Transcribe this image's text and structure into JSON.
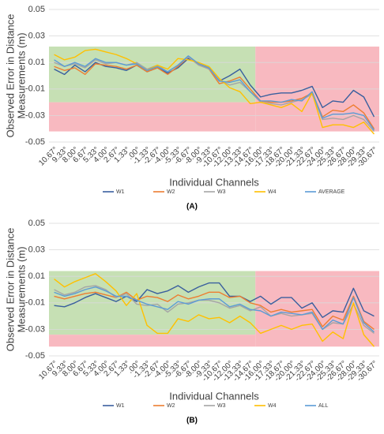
{
  "chart_data": [
    {
      "type": "line",
      "label": "(A)",
      "x_label": "Individual Channels",
      "y_label": [
        "Observed Error in Distance",
        "Measurements (m)"
      ],
      "categories": [
        "10.67°",
        "9.33°",
        "8.00°",
        "6.67°",
        "5.33°",
        "4.00°",
        "2.67°",
        "1.33°",
        ".00°",
        "-1.33°",
        "-2.67°",
        "-4.00°",
        "-5.33°",
        "-6.67°",
        "-8.00°",
        "-9.33°",
        "-10.67°",
        "-12.00°",
        "-13.33°",
        "-14.67°",
        "-16.00°",
        "-17.33°",
        "-18.67°",
        "-20.00°",
        "-21.33°",
        "-22.67°",
        "-24.00°",
        "-25.33°",
        "-26.67°",
        "-28.00°",
        "-29.33°",
        "-30.67°"
      ],
      "ylim": [
        -0.05,
        0.05
      ],
      "yticks": [
        -0.05,
        -0.03,
        -0.01,
        0.01,
        0.03,
        0.05
      ],
      "grid": true,
      "bands": [
        {
          "color": "#c6e0b4",
          "from": "10.67°",
          "to": "-14.67°",
          "ylim": [
            -0.02,
            0.022
          ]
        },
        {
          "color": "#f8b9c0",
          "from": "-16.00°",
          "to": "-30.67°",
          "ylim": [
            -0.042,
            0.022
          ]
        },
        {
          "color": "#f8b9c0",
          "from": "10.67°",
          "to": "-14.67°",
          "ylim": [
            -0.042,
            -0.02
          ]
        }
      ],
      "series": [
        {
          "name": "W1",
          "color": "#3a5f9e",
          "values": [
            0.005,
            0.001,
            0.008,
            0.003,
            0.01,
            0.007,
            0.006,
            0.004,
            0.008,
            0.003,
            0.006,
            0.002,
            0.006,
            0.013,
            0.009,
            0.006,
            -0.004,
            0.0,
            0.005,
            -0.007,
            -0.016,
            -0.014,
            -0.013,
            -0.013,
            -0.011,
            -0.008,
            -0.024,
            -0.019,
            -0.02,
            -0.011,
            -0.016,
            -0.031
          ]
        },
        {
          "name": "W2",
          "color": "#ed7d31",
          "values": [
            0.007,
            0.004,
            0.006,
            0.001,
            0.009,
            0.008,
            0.007,
            0.005,
            0.008,
            0.003,
            0.006,
            0.001,
            0.007,
            0.014,
            0.009,
            0.005,
            -0.006,
            -0.004,
            -0.001,
            -0.01,
            -0.019,
            -0.02,
            -0.02,
            -0.019,
            -0.017,
            -0.013,
            -0.031,
            -0.026,
            -0.027,
            -0.022,
            -0.028,
            -0.04
          ]
        },
        {
          "name": "W3",
          "color": "#a5a5a5",
          "values": [
            0.01,
            0.007,
            0.009,
            0.006,
            0.012,
            0.009,
            0.01,
            0.008,
            0.01,
            0.005,
            0.008,
            0.003,
            0.008,
            0.014,
            0.008,
            0.005,
            -0.003,
            -0.007,
            -0.005,
            -0.012,
            -0.02,
            -0.021,
            -0.022,
            -0.02,
            -0.018,
            -0.014,
            -0.033,
            -0.032,
            -0.033,
            -0.03,
            -0.033,
            -0.042
          ]
        },
        {
          "name": "W4",
          "color": "#ffc000",
          "values": [
            0.016,
            0.012,
            0.014,
            0.019,
            0.02,
            0.018,
            0.016,
            0.013,
            0.009,
            0.004,
            0.008,
            0.005,
            0.013,
            0.012,
            0.01,
            0.007,
            -0.002,
            -0.009,
            -0.012,
            -0.021,
            -0.02,
            -0.022,
            -0.024,
            -0.021,
            -0.027,
            -0.013,
            -0.039,
            -0.037,
            -0.037,
            -0.039,
            -0.035,
            -0.044
          ]
        },
        {
          "name": "AVERAGE",
          "color": "#5b9bd5",
          "values": [
            0.012,
            0.007,
            0.01,
            0.007,
            0.013,
            0.01,
            0.01,
            0.008,
            0.009,
            0.004,
            0.007,
            0.003,
            0.008,
            0.015,
            0.009,
            0.006,
            -0.004,
            -0.005,
            -0.003,
            -0.012,
            -0.019,
            -0.019,
            -0.02,
            -0.018,
            -0.019,
            -0.012,
            -0.032,
            -0.029,
            -0.029,
            -0.028,
            -0.03,
            -0.041
          ]
        }
      ]
    },
    {
      "type": "line",
      "label": "(B)",
      "x_label": "Individual Channels",
      "y_label": [
        "Observed Error in Distance",
        "Measurements (m)"
      ],
      "categories": [
        "10.67°",
        "9.33°",
        "8.00°",
        "6.67°",
        "5.33°",
        "4.00°",
        "2.67°",
        "1.33°",
        ".00°",
        "-1.33°",
        "-2.67°",
        "-4.00°",
        "-5.33°",
        "-6.67°",
        "-8.00°",
        "-9.33°",
        "-10.67°",
        "-12.00°",
        "-13.33°",
        "-14.67°",
        "-16.00°",
        "-17.33°",
        "-18.67°",
        "-20.00°",
        "-21.33°",
        "-22.67°",
        "-24.00°",
        "-25.33°",
        "-26.67°",
        "-28.00°",
        "-29.33°",
        "-30.67°"
      ],
      "ylim": [
        -0.05,
        0.05
      ],
      "yticks": [
        -0.05,
        -0.03,
        -0.01,
        0.01,
        0.03,
        0.05
      ],
      "grid": true,
      "bands": [
        {
          "color": "#c6e0b4",
          "from": "10.67°",
          "to": "-14.67°",
          "ylim": [
            -0.034,
            0.014
          ]
        },
        {
          "color": "#f8b9c0",
          "from": "-16.00°",
          "to": "-30.67°",
          "ylim": [
            -0.043,
            0.014
          ]
        },
        {
          "color": "#f8b9c0",
          "from": "10.67°",
          "to": "-14.67°",
          "ylim": [
            -0.043,
            -0.034
          ]
        }
      ],
      "series": [
        {
          "name": "W1",
          "color": "#3a5f9e",
          "values": [
            -0.012,
            -0.013,
            -0.01,
            -0.006,
            -0.003,
            -0.006,
            -0.009,
            -0.005,
            -0.009,
            0.0,
            -0.003,
            -0.001,
            0.003,
            -0.002,
            0.002,
            0.005,
            0.005,
            -0.005,
            -0.005,
            -0.009,
            -0.005,
            -0.011,
            -0.006,
            -0.006,
            -0.014,
            -0.01,
            -0.021,
            -0.016,
            -0.017,
            0.001,
            -0.016,
            -0.02
          ]
        },
        {
          "name": "W2",
          "color": "#ed7d31",
          "values": [
            -0.005,
            -0.007,
            -0.005,
            -0.003,
            -0.002,
            -0.004,
            -0.006,
            -0.002,
            -0.008,
            -0.005,
            -0.006,
            -0.009,
            -0.004,
            -0.007,
            -0.005,
            -0.002,
            -0.002,
            -0.006,
            -0.005,
            -0.01,
            -0.012,
            -0.017,
            -0.015,
            -0.017,
            -0.016,
            -0.015,
            -0.028,
            -0.02,
            -0.023,
            -0.005,
            -0.024,
            -0.03
          ]
        },
        {
          "name": "W3",
          "color": "#a5a5a5",
          "values": [
            0.0,
            -0.004,
            -0.002,
            0.002,
            0.003,
            0.0,
            -0.006,
            -0.003,
            -0.011,
            -0.012,
            -0.011,
            -0.017,
            -0.011,
            -0.01,
            -0.008,
            -0.008,
            -0.01,
            -0.014,
            -0.012,
            -0.016,
            -0.013,
            -0.02,
            -0.018,
            -0.02,
            -0.019,
            -0.018,
            -0.03,
            -0.025,
            -0.026,
            -0.011,
            -0.027,
            -0.033
          ]
        },
        {
          "name": "W4",
          "color": "#ffc000",
          "values": [
            0.008,
            0.002,
            0.006,
            0.009,
            0.012,
            0.006,
            -0.001,
            -0.012,
            -0.003,
            -0.027,
            -0.033,
            -0.033,
            -0.022,
            -0.024,
            -0.019,
            -0.022,
            -0.021,
            -0.025,
            -0.02,
            -0.025,
            -0.033,
            -0.03,
            -0.027,
            -0.03,
            -0.027,
            -0.026,
            -0.039,
            -0.032,
            -0.037,
            -0.01,
            -0.034,
            -0.043
          ]
        },
        {
          "name": "ALL",
          "color": "#5b9bd5",
          "values": [
            -0.002,
            -0.005,
            -0.003,
            0.0,
            0.002,
            -0.001,
            -0.005,
            -0.005,
            -0.008,
            -0.011,
            -0.013,
            -0.015,
            -0.009,
            -0.011,
            -0.008,
            -0.007,
            -0.007,
            -0.013,
            -0.011,
            -0.015,
            -0.016,
            -0.02,
            -0.017,
            -0.018,
            -0.019,
            -0.017,
            -0.03,
            -0.023,
            -0.026,
            -0.006,
            -0.025,
            -0.032
          ]
        }
      ]
    }
  ]
}
